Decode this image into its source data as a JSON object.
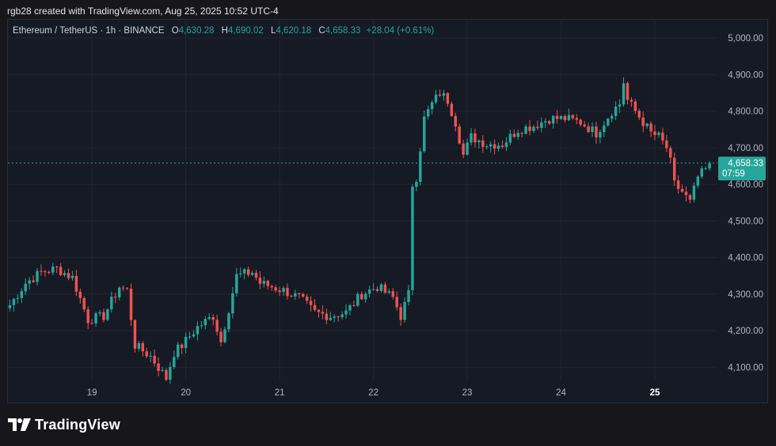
{
  "caption": "rgb28 created with TradingView.com, Aug 25, 2025 10:52 UTC-4",
  "legend": {
    "symbol": "Ethereum / TetherUS · 1h · BINANCE",
    "o_label": "O",
    "o_value": "4,630.28",
    "h_label": "H",
    "h_value": "4,690.02",
    "l_label": "L",
    "l_value": "4,620.18",
    "c_label": "C",
    "c_value": "4,658.33",
    "change": "+28.04 (+0.61%)"
  },
  "price_tag": {
    "price": "4,658.33",
    "countdown": "07:59"
  },
  "brand": "TradingView",
  "colors": {
    "up": "#26a69a",
    "down": "#ef5350",
    "tag": "#26a69a"
  },
  "chart_data": {
    "type": "candlestick",
    "ylim": [
      4062,
      5050
    ],
    "y_ticks": [
      "5,000.00",
      "4,900.00",
      "4,800.00",
      "4,700.00",
      "4,600.00",
      "4,500.00",
      "4,400.00",
      "4,300.00",
      "4,200.00",
      "4,100.00"
    ],
    "y_tick_values": [
      5000,
      4900,
      4800,
      4700,
      4600,
      4500,
      4400,
      4300,
      4200,
      4100
    ],
    "x_ticks": [
      {
        "label": "19",
        "hour": 21,
        "bold": false
      },
      {
        "label": "20",
        "hour": 45,
        "bold": false
      },
      {
        "label": "21",
        "hour": 69,
        "bold": false
      },
      {
        "label": "22",
        "hour": 93,
        "bold": false
      },
      {
        "label": "23",
        "hour": 117,
        "bold": false
      },
      {
        "label": "24",
        "hour": 141,
        "bold": false
      },
      {
        "label": "25",
        "hour": 165,
        "bold": true
      }
    ],
    "last_price": 4658.33,
    "anchors": [
      [
        0,
        4270
      ],
      [
        4,
        4330
      ],
      [
        8,
        4360
      ],
      [
        12,
        4370
      ],
      [
        16,
        4345
      ],
      [
        20,
        4230
      ],
      [
        24,
        4240
      ],
      [
        28,
        4320
      ],
      [
        30,
        4310
      ],
      [
        32,
        4160
      ],
      [
        36,
        4130
      ],
      [
        40,
        4070
      ],
      [
        42,
        4140
      ],
      [
        44,
        4160
      ],
      [
        48,
        4210
      ],
      [
        52,
        4240
      ],
      [
        54,
        4170
      ],
      [
        56,
        4260
      ],
      [
        58,
        4350
      ],
      [
        62,
        4360
      ],
      [
        64,
        4330
      ],
      [
        70,
        4310
      ],
      [
        74,
        4290
      ],
      [
        78,
        4250
      ],
      [
        82,
        4240
      ],
      [
        86,
        4250
      ],
      [
        90,
        4300
      ],
      [
        94,
        4320
      ],
      [
        98,
        4290
      ],
      [
        100,
        4240
      ],
      [
        102,
        4300
      ],
      [
        103,
        4600
      ],
      [
        104,
        4620
      ],
      [
        106,
        4780
      ],
      [
        108,
        4820
      ],
      [
        110,
        4850
      ],
      [
        112,
        4830
      ],
      [
        114,
        4770
      ],
      [
        116,
        4680
      ],
      [
        118,
        4730
      ],
      [
        122,
        4710
      ],
      [
        126,
        4710
      ],
      [
        130,
        4750
      ],
      [
        134,
        4760
      ],
      [
        138,
        4780
      ],
      [
        142,
        4780
      ],
      [
        146,
        4770
      ],
      [
        150,
        4740
      ],
      [
        152,
        4770
      ],
      [
        154,
        4800
      ],
      [
        156,
        4820
      ],
      [
        157,
        4880
      ],
      [
        158,
        4830
      ],
      [
        160,
        4800
      ],
      [
        162,
        4770
      ],
      [
        164,
        4740
      ],
      [
        166,
        4730
      ],
      [
        168,
        4700
      ],
      [
        169,
        4660
      ],
      [
        170,
        4600
      ],
      [
        172,
        4580
      ],
      [
        174,
        4550
      ],
      [
        176,
        4620
      ],
      [
        178,
        4640
      ],
      [
        179,
        4658.33
      ]
    ]
  }
}
